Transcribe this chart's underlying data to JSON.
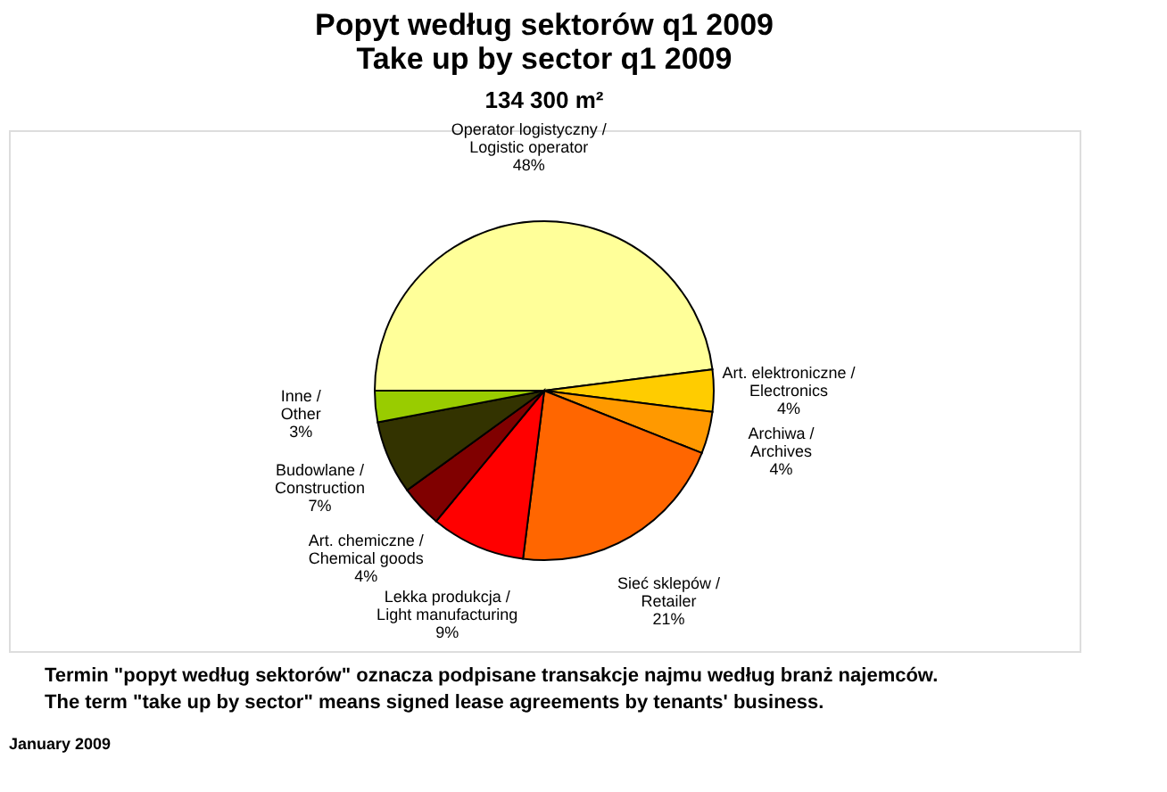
{
  "chart_data": {
    "type": "pie",
    "title": [
      "Popyt według sektorów q1 2009",
      "Take up by sector q1 2009"
    ],
    "subtitle": "134 300 m²",
    "categories": [
      "Operator logistyczny / Logistic operator",
      "Art. elektroniczne / Electronics",
      "Archiwa / Archives",
      "Sieć sklepów / Retailer",
      "Lekka produkcja / Light manufacturing",
      "Art. chemiczne / Chemical goods",
      "Budowlane / Construction",
      "Inne / Other"
    ],
    "values": [
      48,
      4,
      4,
      21,
      9,
      4,
      7,
      3
    ],
    "value_labels": [
      "48%",
      "4%",
      "4%",
      "21%",
      "9%",
      "4%",
      "7%",
      "3%"
    ],
    "colors": [
      "#ffff99",
      "#ffcc00",
      "#ff9900",
      "#ff6600",
      "#ff0000",
      "#800000",
      "#333300",
      "#99cc00"
    ],
    "legend": false,
    "annotations": [
      "Termin \"popyt według sektorów\" oznacza podpisane transakcje najmu według branż najemców.",
      "The term \"take up by sector\" means signed lease agreements by tenants' business.",
      "January 2009"
    ]
  }
}
